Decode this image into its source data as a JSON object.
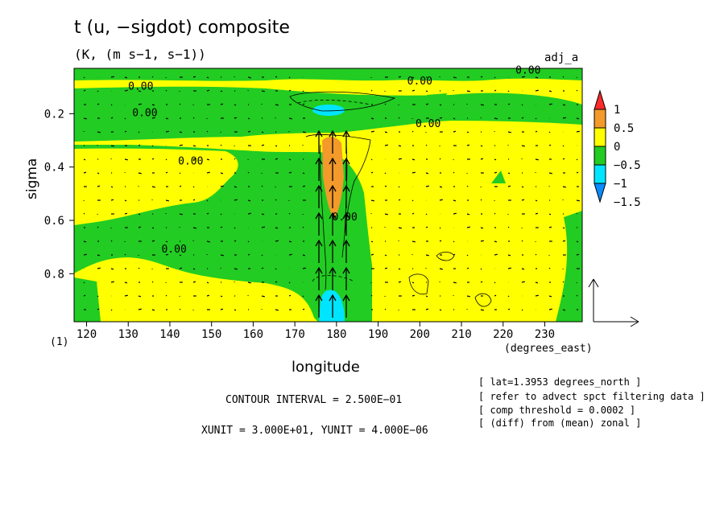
{
  "title": "t (u, −sigdot) composite",
  "units": "(K, (m s−1, s−1))",
  "tag": "adj_a",
  "notes": {
    "lat": "[ lat=1.3953 degrees_north ]",
    "filter": "[ refer to advect spct filtering data ]",
    "threshold": "[ comp threshold = 0.0002 ]",
    "diff": "[ (diff) from (mean) zonal ]",
    "contour": "CONTOUR INTERVAL = 2.500E−01",
    "units": "XUNIT = 3.000E+01, YUNIT = 4.000E−06"
  },
  "chart_data": {
    "type": "heatmap",
    "xlabel": "longitude",
    "xunit": "(degrees_east)",
    "ylabel": "sigma",
    "ylevel_note": "(1)",
    "xlim": [
      117,
      239
    ],
    "ylim": [
      0.03,
      0.98
    ],
    "y_inverted": true,
    "xticks": [
      120,
      130,
      140,
      150,
      160,
      170,
      180,
      190,
      200,
      210,
      220,
      230
    ],
    "yticks": [
      0.2,
      0.4,
      0.6,
      0.8
    ],
    "colorbar": {
      "labels": [
        "1",
        "0.5",
        "0",
        "−0.5",
        "−1",
        "−1.5"
      ],
      "colors": [
        "#ff2a2a",
        "#f39a2a",
        "#ffff00",
        "#22cc22",
        "#00e5ff",
        "#0a8cff"
      ]
    },
    "contour_labels": [
      {
        "text": "0.00",
        "x": 133,
        "y": 0.11
      },
      {
        "text": "0.00",
        "x": 134,
        "y": 0.21
      },
      {
        "text": "0.00",
        "x": 145,
        "y": 0.39
      },
      {
        "text": "0.00",
        "x": 141,
        "y": 0.72
      },
      {
        "text": "0.00",
        "x": 200,
        "y": 0.09
      },
      {
        "text": "0.00",
        "x": 202,
        "y": 0.25
      },
      {
        "text": "0.00",
        "x": 226,
        "y": 0.05
      },
      {
        "text": "0.00",
        "x": 182,
        "y": 0.6
      }
    ],
    "regions": [
      {
        "level": "0 to 0.5",
        "description": "background"
      },
      {
        "level": "-0.5 to 0",
        "description": "upper band near sigma 0.2"
      },
      {
        "level": "-0.5 to 0",
        "description": "western lower band"
      },
      {
        "level": "-0.5 to 0",
        "description": "eastern edge"
      },
      {
        "level": "-1 to -0.5",
        "description": "minimum near 178E, sigma 0.15"
      },
      {
        "level": "-1 to -0.5",
        "description": "minimum near 180E, sigma 0.93"
      },
      {
        "level": "0.5 to 1",
        "description": "maximum near 180E, sigma 0.3–0.55"
      }
    ],
    "vectors": "(u, −sigdot) wind vectors; strong upward flow along 176–183E"
  }
}
